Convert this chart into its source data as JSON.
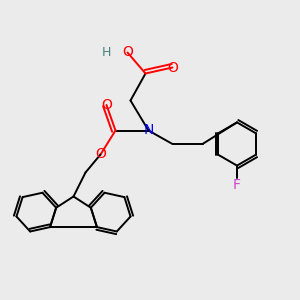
{
  "bg_color": "#ebebeb",
  "atom_colors": {
    "O": "#ff0000",
    "N": "#0000ff",
    "F": "#cc44cc",
    "H": "#4a8080",
    "C": "#000000"
  },
  "bond_color": "#000000",
  "bond_width": 1.4,
  "title": ""
}
